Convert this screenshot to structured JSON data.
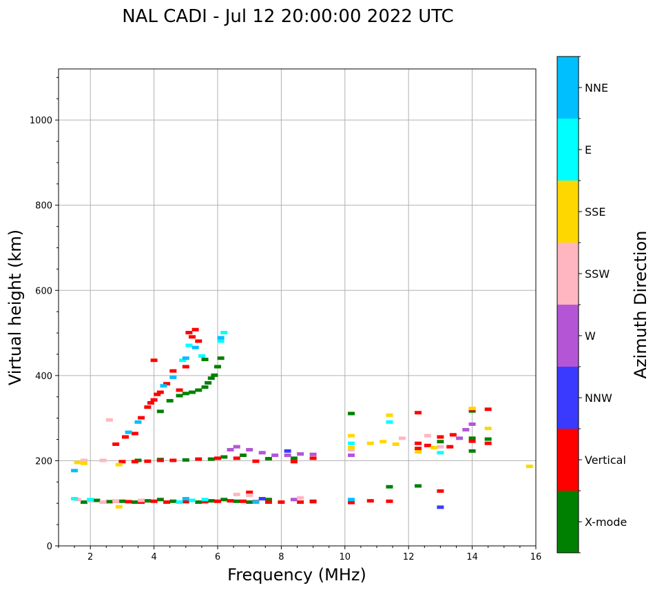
{
  "chart_data": {
    "type": "scatter",
    "title": "NAL CADI - Jul 12 20:00:00 2022 UTC",
    "xlabel": "Frequency (MHz)",
    "ylabel": "Virtual height (km)",
    "xlim": [
      1,
      16
    ],
    "ylim": [
      0,
      1120
    ],
    "xticks": [
      2,
      4,
      6,
      8,
      10,
      12,
      14,
      16
    ],
    "xticks_labels": [
      "2",
      "4",
      "6",
      "8",
      "10",
      "12",
      "14",
      "16"
    ],
    "yticks": [
      0,
      200,
      400,
      600,
      800,
      1000
    ],
    "yticks_labels": [
      "0",
      "200",
      "400",
      "600",
      "800",
      "1000"
    ],
    "grid": true,
    "colorbar": {
      "label": "Azimuth Direction",
      "categories": [
        "X-mode",
        "Vertical",
        "NNW",
        "W",
        "SSW",
        "SSE",
        "E",
        "NNE"
      ],
      "colors": [
        "#008000",
        "#ff0000",
        "#3a3aff",
        "#b455d6",
        "#ffb6c1",
        "#ffd700",
        "#00ffff",
        "#00bfff"
      ]
    },
    "series": [
      {
        "name": "X-mode",
        "color": "#008000",
        "points": [
          [
            1.8,
            102
          ],
          [
            2.2,
            106
          ],
          [
            2.6,
            103
          ],
          [
            3.0,
            104
          ],
          [
            3.4,
            102
          ],
          [
            3.8,
            105
          ],
          [
            4.2,
            108
          ],
          [
            4.6,
            104
          ],
          [
            5.0,
            103
          ],
          [
            5.4,
            102
          ],
          [
            5.8,
            105
          ],
          [
            6.2,
            108
          ],
          [
            6.6,
            104
          ],
          [
            7.0,
            102
          ],
          [
            7.6,
            108
          ],
          [
            8.4,
            205
          ],
          [
            9.0,
            104
          ],
          [
            3.5,
            200
          ],
          [
            4.2,
            202
          ],
          [
            5.0,
            201
          ],
          [
            5.8,
            203
          ],
          [
            6.2,
            208
          ],
          [
            6.8,
            212
          ],
          [
            7.6,
            204
          ],
          [
            4.2,
            315
          ],
          [
            4.5,
            340
          ],
          [
            4.8,
            352
          ],
          [
            5.0,
            357
          ],
          [
            5.2,
            360
          ],
          [
            5.4,
            365
          ],
          [
            5.6,
            372
          ],
          [
            5.7,
            382
          ],
          [
            5.8,
            393
          ],
          [
            5.9,
            400
          ],
          [
            6.0,
            420
          ],
          [
            6.1,
            440
          ],
          [
            5.6,
            437
          ],
          [
            11.4,
            138
          ],
          [
            12.3,
            140
          ],
          [
            13.0,
            244
          ],
          [
            14.0,
            222
          ],
          [
            14.0,
            252
          ],
          [
            14.5,
            250
          ],
          [
            10.2,
            310
          ],
          [
            14.0,
            316
          ]
        ]
      },
      {
        "name": "Vertical",
        "color": "#ff0000",
        "points": [
          [
            2.4,
            102
          ],
          [
            2.8,
            104
          ],
          [
            3.2,
            103
          ],
          [
            3.6,
            102
          ],
          [
            4.0,
            104
          ],
          [
            4.4,
            102
          ],
          [
            5.0,
            104
          ],
          [
            5.6,
            103
          ],
          [
            6.0,
            104
          ],
          [
            6.4,
            105
          ],
          [
            6.8,
            104
          ],
          [
            7.2,
            103
          ],
          [
            7.6,
            102
          ],
          [
            8.0,
            102
          ],
          [
            8.6,
            102
          ],
          [
            9.0,
            103
          ],
          [
            3.0,
            197
          ],
          [
            3.4,
            197
          ],
          [
            3.8,
            198
          ],
          [
            4.2,
            200
          ],
          [
            4.6,
            200
          ],
          [
            5.4,
            203
          ],
          [
            6.0,
            205
          ],
          [
            6.6,
            205
          ],
          [
            7.2,
            198
          ],
          [
            8.4,
            197
          ],
          [
            9.0,
            205
          ],
          [
            2.8,
            238
          ],
          [
            3.1,
            255
          ],
          [
            3.4,
            263
          ],
          [
            3.6,
            300
          ],
          [
            3.8,
            325
          ],
          [
            3.9,
            335
          ],
          [
            4.0,
            342
          ],
          [
            4.1,
            355
          ],
          [
            4.2,
            360
          ],
          [
            4.4,
            380
          ],
          [
            4.6,
            410
          ],
          [
            4.8,
            365
          ],
          [
            5.0,
            420
          ],
          [
            5.2,
            490
          ],
          [
            5.4,
            480
          ],
          [
            4.0,
            435
          ],
          [
            5.1,
            500
          ],
          [
            5.3,
            507
          ],
          [
            7.0,
            125
          ],
          [
            10.2,
            101
          ],
          [
            10.8,
            105
          ],
          [
            11.4,
            104
          ],
          [
            12.3,
            240
          ],
          [
            12.3,
            312
          ],
          [
            12.6,
            235
          ],
          [
            13.0,
            255
          ],
          [
            13.0,
            128
          ],
          [
            13.3,
            232
          ],
          [
            13.4,
            260
          ],
          [
            14.0,
            245
          ],
          [
            14.0,
            320
          ],
          [
            14.5,
            320
          ],
          [
            14.5,
            240
          ],
          [
            12.3,
            228
          ]
        ]
      },
      {
        "name": "NNW",
        "color": "#3a3aff",
        "points": [
          [
            8.2,
            222
          ],
          [
            13.0,
            90
          ],
          [
            7.4,
            110
          ]
        ]
      },
      {
        "name": "W",
        "color": "#b455d6",
        "points": [
          [
            6.4,
            225
          ],
          [
            6.6,
            232
          ],
          [
            7.0,
            225
          ],
          [
            7.4,
            218
          ],
          [
            7.8,
            212
          ],
          [
            8.2,
            212
          ],
          [
            8.6,
            215
          ],
          [
            9.0,
            214
          ],
          [
            8.4,
            108
          ],
          [
            10.2,
            212
          ],
          [
            13.8,
            272
          ],
          [
            14.0,
            285
          ],
          [
            13.6,
            252
          ]
        ]
      },
      {
        "name": "SSW",
        "color": "#ffb6c1",
        "points": [
          [
            1.6,
            108
          ],
          [
            2.0,
            105
          ],
          [
            2.4,
            102
          ],
          [
            2.8,
            104
          ],
          [
            3.6,
            106
          ],
          [
            1.8,
            200
          ],
          [
            2.4,
            200
          ],
          [
            2.6,
            295
          ],
          [
            6.6,
            120
          ],
          [
            7.0,
            118
          ],
          [
            8.6,
            112
          ],
          [
            10.2,
            225
          ],
          [
            11.8,
            252
          ],
          [
            12.6,
            258
          ],
          [
            13.0,
            232
          ]
        ]
      },
      {
        "name": "SSE",
        "color": "#ffd700",
        "points": [
          [
            1.6,
            195
          ],
          [
            1.8,
            193
          ],
          [
            2.9,
            91
          ],
          [
            2.9,
            190
          ],
          [
            10.2,
            258
          ],
          [
            10.2,
            230
          ],
          [
            10.8,
            240
          ],
          [
            11.2,
            244
          ],
          [
            11.6,
            238
          ],
          [
            11.4,
            306
          ],
          [
            12.3,
            220
          ],
          [
            12.8,
            230
          ],
          [
            14.0,
            322
          ],
          [
            14.5,
            275
          ],
          [
            15.8,
            186
          ]
        ]
      },
      {
        "name": "E",
        "color": "#00ffff",
        "points": [
          [
            1.5,
            110
          ],
          [
            2.0,
            108
          ],
          [
            4.8,
            102
          ],
          [
            5.2,
            106
          ],
          [
            5.6,
            108
          ],
          [
            4.9,
            435
          ],
          [
            5.1,
            470
          ],
          [
            5.5,
            445
          ],
          [
            6.1,
            480
          ],
          [
            6.2,
            500
          ],
          [
            11.4,
            290
          ],
          [
            13.0,
            218
          ],
          [
            10.2,
            240
          ]
        ]
      },
      {
        "name": "NNE",
        "color": "#00bfff",
        "points": [
          [
            1.5,
            176
          ],
          [
            3.2,
            266
          ],
          [
            3.5,
            290
          ],
          [
            4.3,
            375
          ],
          [
            4.6,
            395
          ],
          [
            5.0,
            440
          ],
          [
            5.3,
            465
          ],
          [
            6.1,
            488
          ],
          [
            5.0,
            110
          ],
          [
            10.2,
            108
          ],
          [
            7.2,
            102
          ]
        ]
      }
    ]
  }
}
